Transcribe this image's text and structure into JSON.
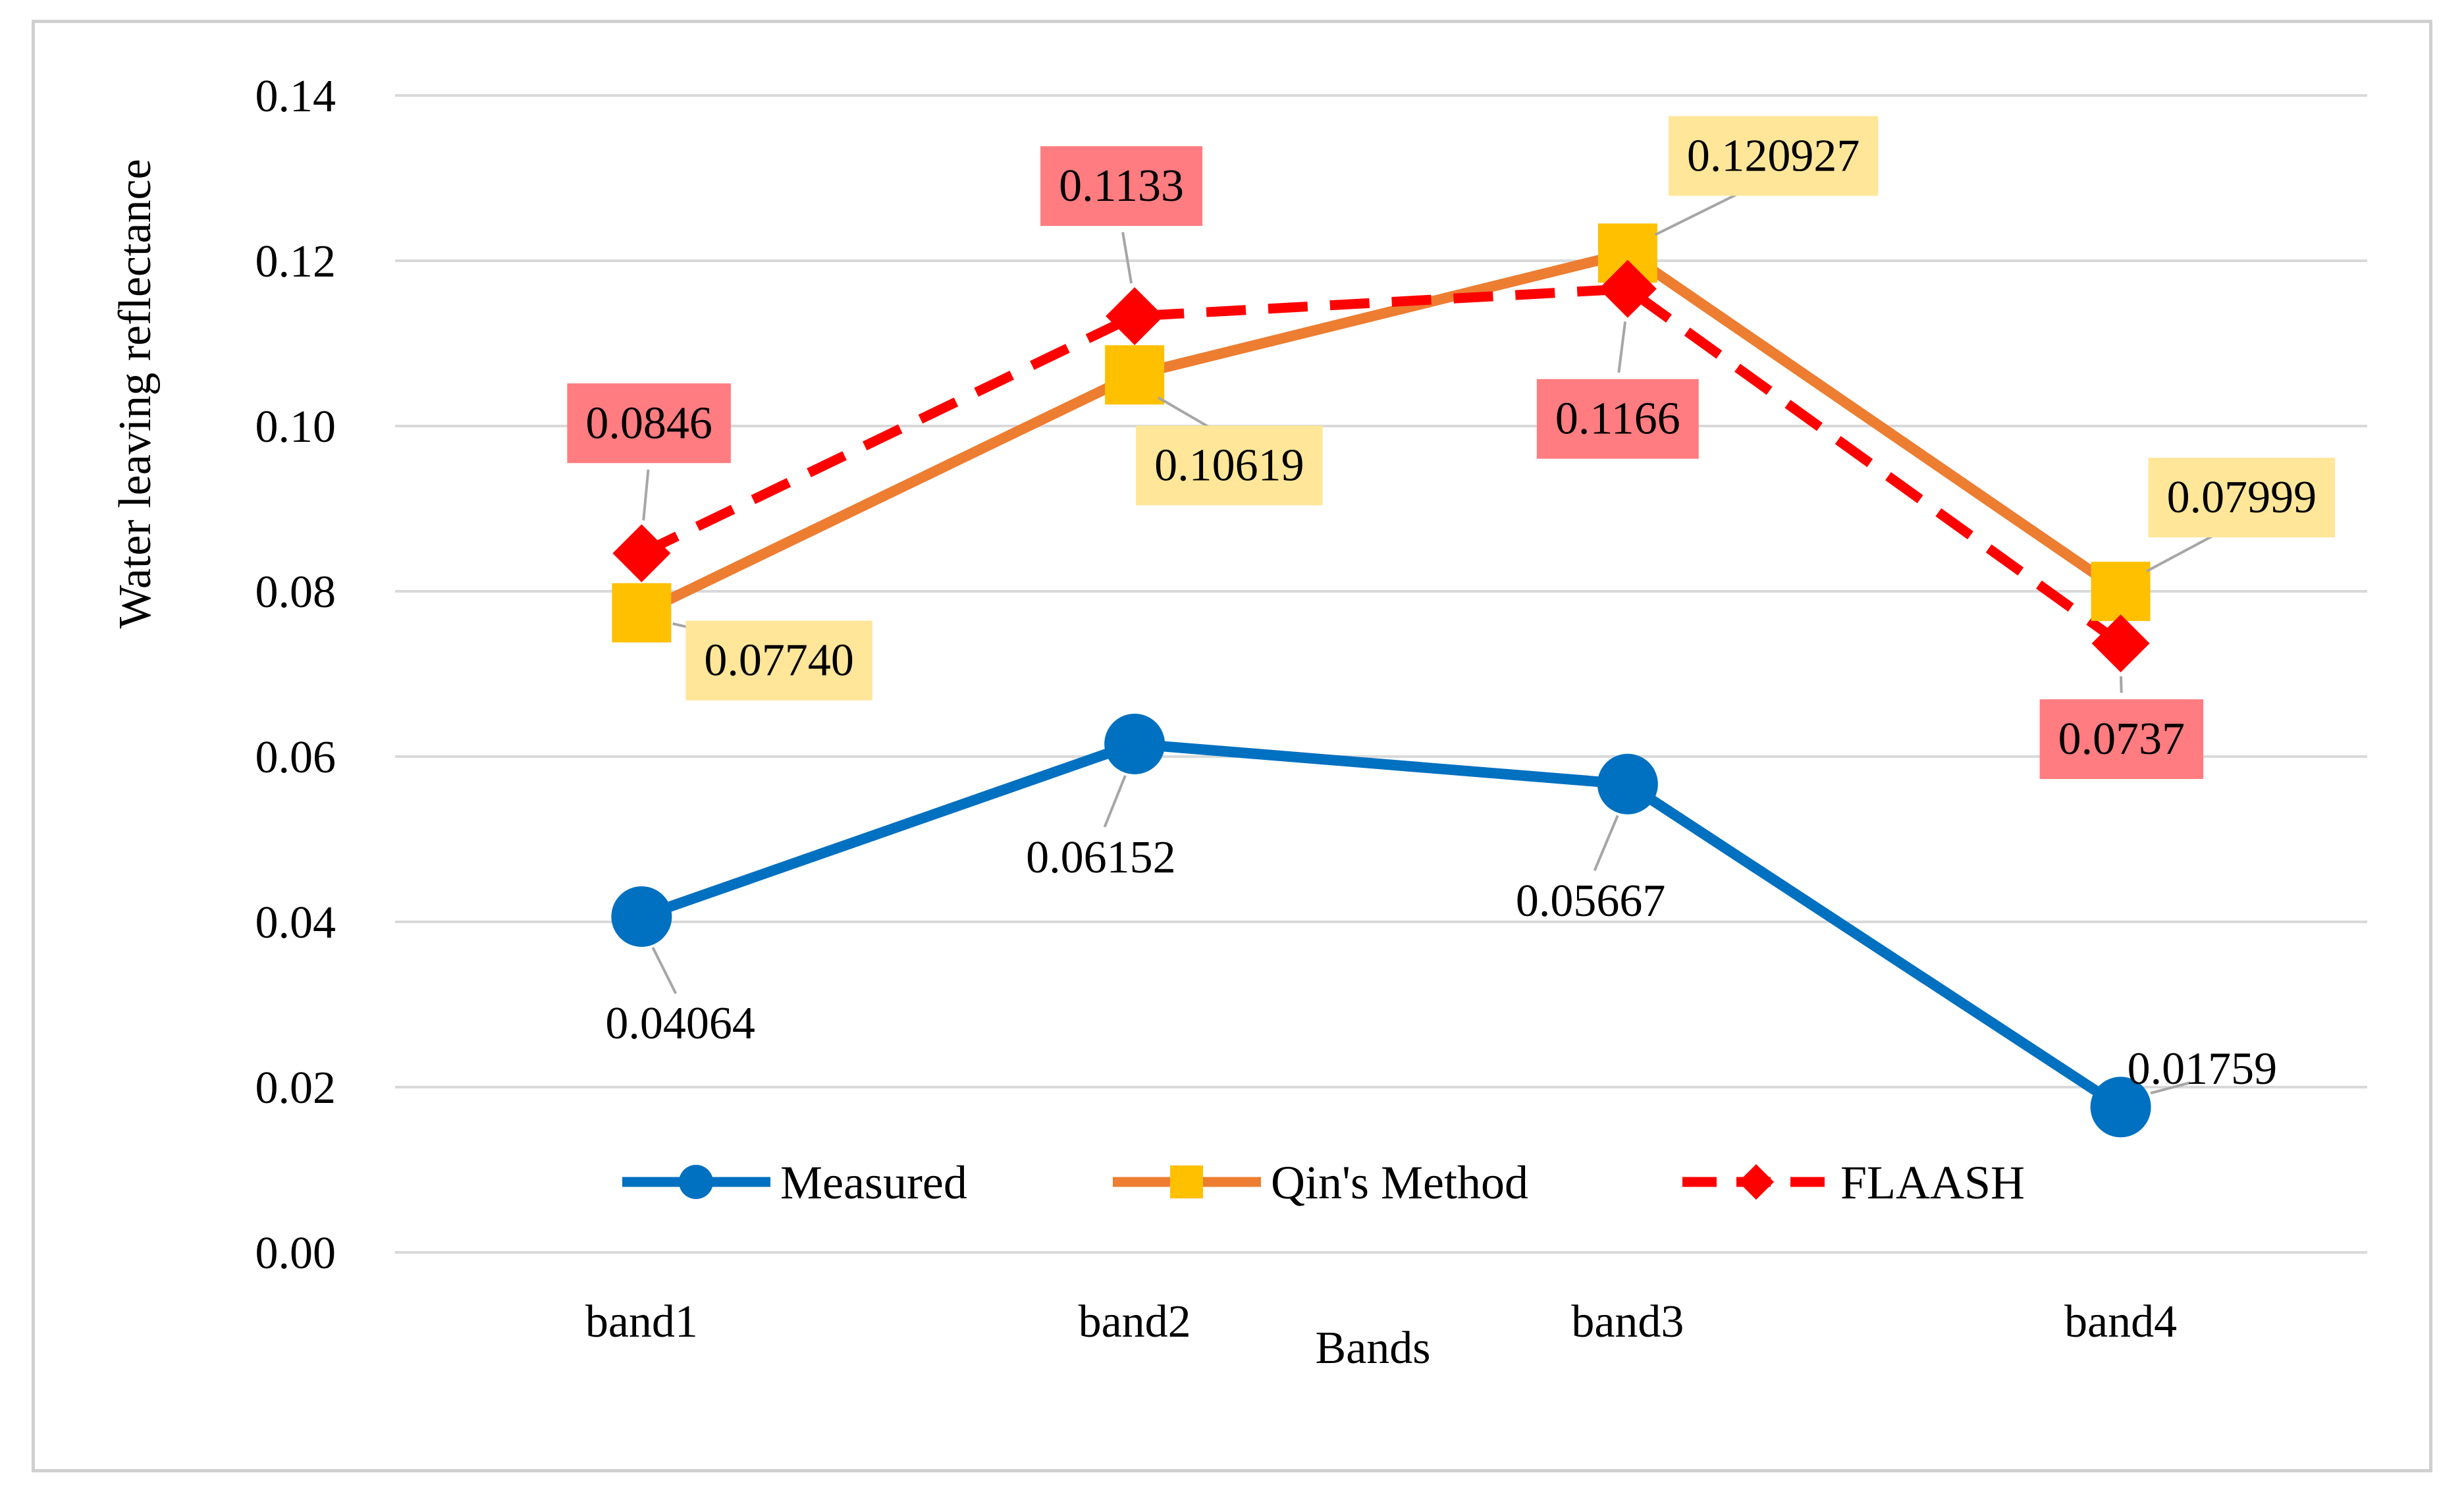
{
  "chart_data": {
    "type": "line",
    "title": "",
    "xlabel": "Bands",
    "ylabel": "Water leaving  reflectance",
    "categories": [
      "band1",
      "band2",
      "band3",
      "band4"
    ],
    "ylim": [
      0,
      0.14
    ],
    "yticks": [
      "0.00",
      "0.02",
      "0.04",
      "0.06",
      "0.08",
      "0.10",
      "0.12",
      "0.14"
    ],
    "grid": true,
    "legend_position": "bottom-center inside plot",
    "series": [
      {
        "name": "Measured",
        "values": [
          0.04064,
          0.06152,
          0.05667,
          0.01759
        ],
        "labels": [
          "0.04064",
          "0.06152",
          "0.05667",
          "0.01759"
        ],
        "color": "#0070C0",
        "marker": "circle",
        "line_style": "solid",
        "label_box": ""
      },
      {
        "name": "Qin's Method",
        "values": [
          0.0774,
          0.10619,
          0.120927,
          0.07999
        ],
        "labels": [
          "0.07740",
          "0.10619",
          "0.120927",
          "0.07999"
        ],
        "color": "#ED7D31",
        "marker_color": "#FFC000",
        "marker": "square",
        "line_style": "solid",
        "label_box": "#FFE699"
      },
      {
        "name": "FLAASH",
        "values": [
          0.0846,
          0.1133,
          0.1166,
          0.0737
        ],
        "labels": [
          "0.0846",
          "0.1133",
          "0.1166",
          "0.0737"
        ],
        "color": "#FF0000",
        "marker": "diamond",
        "line_style": "dashed",
        "label_box": "#FF7C80"
      }
    ]
  },
  "colors": {
    "grid": "#d9d9d9",
    "leader": "#a6a6a6"
  }
}
